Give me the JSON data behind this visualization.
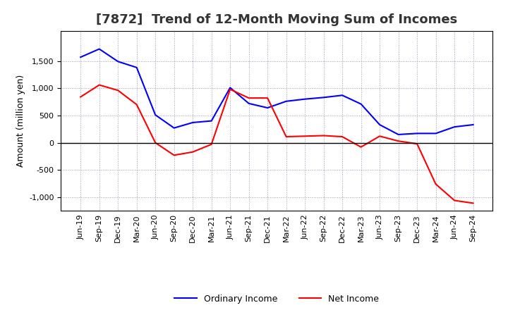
{
  "title": "[7872]  Trend of 12-Month Moving Sum of Incomes",
  "ylabel": "Amount (million yen)",
  "x_labels": [
    "Jun-19",
    "Sep-19",
    "Dec-19",
    "Mar-20",
    "Jun-20",
    "Sep-20",
    "Dec-20",
    "Mar-21",
    "Jun-21",
    "Sep-21",
    "Dec-21",
    "Mar-22",
    "Jun-22",
    "Sep-22",
    "Dec-22",
    "Mar-23",
    "Jun-23",
    "Sep-23",
    "Dec-23",
    "Mar-24",
    "Jun-24",
    "Sep-24"
  ],
  "ordinary_income": [
    1570,
    1720,
    1490,
    1380,
    510,
    270,
    370,
    400,
    1010,
    720,
    640,
    760,
    800,
    830,
    870,
    710,
    330,
    150,
    170,
    170,
    290,
    330
  ],
  "net_income": [
    840,
    1060,
    960,
    700,
    0,
    -230,
    -170,
    -30,
    980,
    820,
    820,
    110,
    120,
    130,
    110,
    -80,
    120,
    30,
    -20,
    -760,
    -1060,
    -1110
  ],
  "ordinary_color": "#0000FF",
  "net_color": "#FF0000",
  "ylim": [
    -1250,
    2050
  ],
  "yticks": [
    -1000,
    -500,
    0,
    500,
    1000,
    1500
  ],
  "background_color": "#FFFFFF",
  "grid_color": "#9999BB",
  "title_color": "#333333",
  "title_fontsize": 13,
  "axis_fontsize": 9,
  "tick_fontsize": 8,
  "legend_fontsize": 9,
  "linewidth": 1.5
}
